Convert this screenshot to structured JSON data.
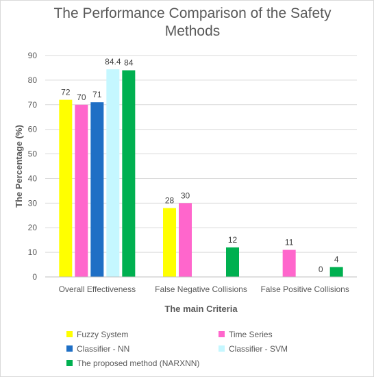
{
  "chart_data": {
    "type": "bar",
    "title_line1": "The Performance Comparison of the Safety",
    "title_line2": "Methods",
    "xlabel": "The main Criteria",
    "ylabel": "The Percentage (%)",
    "ylim": [
      0,
      90
    ],
    "yticks": [
      "0",
      "10",
      "20",
      "30",
      "40",
      "50",
      "60",
      "70",
      "80",
      "90"
    ],
    "grid": true,
    "legend_position": "bottom",
    "categories": [
      "Overall Effectiveness",
      "False Negative Collisions",
      "False Positive Collisions"
    ],
    "series": [
      {
        "name": "Fuzzy System",
        "color": "#ffff00",
        "values": [
          72,
          28,
          null
        ],
        "labels": [
          "72",
          "28",
          ""
        ]
      },
      {
        "name": "Time Series",
        "color": "#ff66cc",
        "values": [
          70,
          30,
          11
        ],
        "labels": [
          "70",
          "30",
          "11"
        ]
      },
      {
        "name": "Classifier - NN",
        "color": "#1f6fc5",
        "values": [
          71,
          null,
          null
        ],
        "labels": [
          "71",
          "",
          ""
        ]
      },
      {
        "name": "Classifier - SVM",
        "color": "#c5f7ff",
        "values": [
          84.4,
          null,
          0
        ],
        "labels": [
          "84.4",
          "",
          "0"
        ]
      },
      {
        "name": "The proposed method (NARXNN)",
        "color": "#00b050",
        "values": [
          84,
          12,
          4
        ],
        "labels": [
          "84",
          "12",
          "4"
        ]
      }
    ]
  }
}
